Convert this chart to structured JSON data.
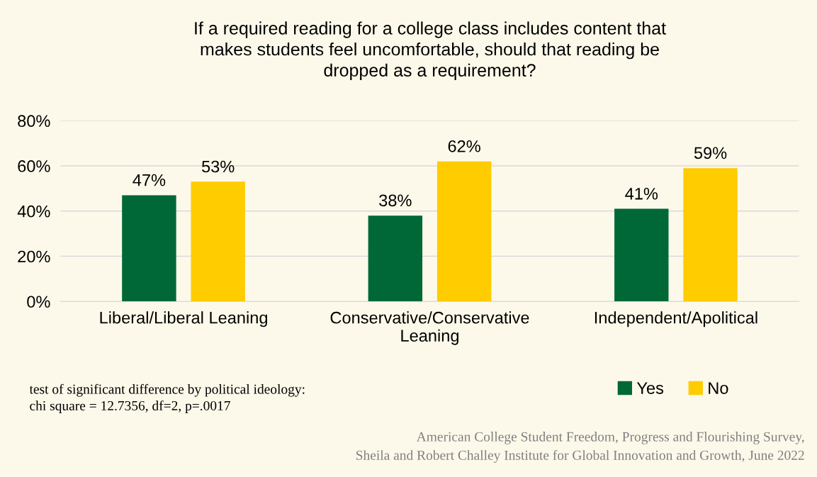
{
  "chart_data": {
    "type": "bar",
    "title": "If a required reading for a college class includes content that\nmakes students feel uncomfortable, should that reading be\ndropped as a requirement?",
    "categories": [
      "Liberal/Liberal Leaning",
      "Conservative/Conservative Leaning",
      "Independent/Apolitical"
    ],
    "series": [
      {
        "name": "Yes",
        "color": "#006837",
        "values": [
          47,
          38,
          41
        ],
        "value_labels": [
          "47%",
          "38%",
          "41%"
        ]
      },
      {
        "name": "No",
        "color": "#ffcc00",
        "values": [
          53,
          62,
          59
        ],
        "value_labels": [
          "53%",
          "62%",
          "59%"
        ]
      }
    ],
    "ylim": [
      0,
      80
    ],
    "yticks": [
      {
        "value": 0,
        "label": "0%"
      },
      {
        "value": 20,
        "label": "20%"
      },
      {
        "value": 40,
        "label": "40%"
      },
      {
        "value": 60,
        "label": "60%"
      },
      {
        "value": 80,
        "label": "80%"
      }
    ],
    "grid": "y",
    "legend": "bottom",
    "annotations": [
      "test of significant difference by political ideology:\nchi square = 12.7356, df=2, p=.0017",
      "American College Student Freedom, Progress and Flourishing Survey,\nSheila and Robert Challey Institute for Global Innovation and Growth, June 2022"
    ]
  }
}
